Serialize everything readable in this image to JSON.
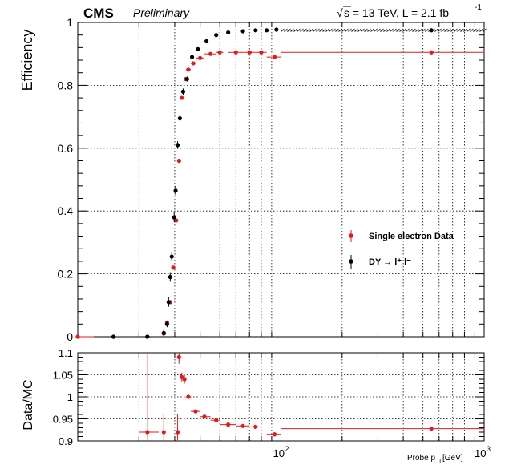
{
  "header": {
    "cms": "CMS",
    "preliminary": "Preliminary",
    "energy": "s = 13 TeV, L = 2.1 fb",
    "energy_sqrt_symbol": "√",
    "lumi_exponent": "-1"
  },
  "chart_data": [
    {
      "type": "scatter",
      "title": "",
      "xlabel": "Probe p_T [GeV]",
      "ylabel": "Efficiency",
      "xscale": "log",
      "xlim": [
        10,
        1000
      ],
      "ylim": [
        0,
        1.0
      ],
      "grid": true,
      "legend_position": "bottom-right",
      "y_ticks": [
        "0",
        "0.2",
        "0.4",
        "0.6",
        "0.8",
        "1"
      ],
      "series": [
        {
          "name": "Single electron Data",
          "color": "#e8181a",
          "points": [
            {
              "x": 10.0,
              "y": 0.0,
              "xlo": 5,
              "xhi": 12
            },
            {
              "x": 15.0,
              "y": 0.0,
              "xlo": 12.0,
              "xhi": 18.0
            },
            {
              "x": 22.0,
              "y": 0.0,
              "xlo": 18.0,
              "xhi": 25.0
            },
            {
              "x": 26.5,
              "y": 0.01,
              "xlo": 26.0,
              "xhi": 27.0
            },
            {
              "x": 27.5,
              "y": 0.045,
              "xlo": 27.0,
              "xhi": 28.0
            },
            {
              "x": 28.5,
              "y": 0.11,
              "xlo": 28.0,
              "xhi": 29.0
            },
            {
              "x": 29.5,
              "y": 0.22,
              "xlo": 29.0,
              "xhi": 30.0
            },
            {
              "x": 30.5,
              "y": 0.37,
              "xlo": 30.0,
              "xhi": 31.0
            },
            {
              "x": 31.5,
              "y": 0.56,
              "xlo": 31.0,
              "xhi": 32.0
            },
            {
              "x": 32.5,
              "y": 0.76,
              "xlo": 32.0,
              "xhi": 33.0
            },
            {
              "x": 34.0,
              "y": 0.82,
              "xlo": 33.0,
              "xhi": 35.0
            },
            {
              "x": 35.0,
              "y": 0.85,
              "xlo": 34.0,
              "xhi": 36.0
            },
            {
              "x": 37.0,
              "y": 0.87,
              "xlo": 36.0,
              "xhi": 38.0
            },
            {
              "x": 40.0,
              "y": 0.887,
              "xlo": 38.0,
              "xhi": 42.0
            },
            {
              "x": 45.0,
              "y": 0.9,
              "xlo": 42.0,
              "xhi": 48.0
            },
            {
              "x": 50.0,
              "y": 0.905,
              "xlo": 48.0,
              "xhi": 52.0
            },
            {
              "x": 60.0,
              "y": 0.905,
              "xlo": 55.0,
              "xhi": 65.0
            },
            {
              "x": 70.0,
              "y": 0.905,
              "xlo": 65.0,
              "xhi": 75.0
            },
            {
              "x": 80.0,
              "y": 0.905,
              "xlo": 75.0,
              "xhi": 85.0
            },
            {
              "x": 93.0,
              "y": 0.89,
              "xlo": 85.0,
              "xhi": 100.0
            },
            {
              "x": 550.0,
              "y": 0.905,
              "xlo": 100.0,
              "xhi": 1000.0
            }
          ]
        },
        {
          "name": "DY → l⁺ l⁻",
          "color": "#000000",
          "points": [
            {
              "x": 15.0,
              "y": 0.0,
              "xlo": 12.0,
              "xhi": 18.0
            },
            {
              "x": 22.0,
              "y": 0.0,
              "xlo": 18.0,
              "xhi": 25.0
            },
            {
              "x": 26.5,
              "y": 0.012,
              "yerr": 0.01
            },
            {
              "x": 27.5,
              "y": 0.04,
              "yerr": 0.01
            },
            {
              "x": 28.0,
              "y": 0.11,
              "yerr": 0.015
            },
            {
              "x": 28.5,
              "y": 0.19,
              "yerr": 0.015
            },
            {
              "x": 29.0,
              "y": 0.255,
              "yerr": 0.015
            },
            {
              "x": 29.8,
              "y": 0.38,
              "yerr": 0.015
            },
            {
              "x": 30.3,
              "y": 0.465,
              "yerr": 0.015
            },
            {
              "x": 31.0,
              "y": 0.61,
              "yerr": 0.012
            },
            {
              "x": 31.8,
              "y": 0.695,
              "yerr": 0.01
            },
            {
              "x": 33.0,
              "y": 0.78,
              "yerr": 0.01
            },
            {
              "x": 34.5,
              "y": 0.82,
              "yerr": 0.008
            },
            {
              "x": 36.5,
              "y": 0.89,
              "yerr": 0.006
            },
            {
              "x": 39.0,
              "y": 0.915,
              "yerr": 0.005
            },
            {
              "x": 43.0,
              "y": 0.94,
              "yerr": 0.004
            },
            {
              "x": 48.0,
              "y": 0.96,
              "yerr": 0.004
            },
            {
              "x": 55.0,
              "y": 0.968,
              "yerr": 0.003
            },
            {
              "x": 65.0,
              "y": 0.972,
              "yerr": 0.003
            },
            {
              "x": 75.0,
              "y": 0.975,
              "yerr": 0.003
            },
            {
              "x": 85.0,
              "y": 0.975,
              "yerr": 0.003
            },
            {
              "x": 95.0,
              "y": 0.977,
              "yerr": 0.003
            },
            {
              "x": 550.0,
              "y": 0.975,
              "xlo": 100.0,
              "xhi": 1000.0
            }
          ]
        }
      ]
    },
    {
      "type": "scatter",
      "title": "",
      "xlabel": "Probe p_T [GeV]",
      "ylabel": "Data/MC",
      "xscale": "log",
      "xlim": [
        10,
        1000
      ],
      "ylim": [
        0.9,
        1.1
      ],
      "grid": true,
      "y_ticks": [
        "0.9",
        "0.95",
        "1",
        "1.05",
        "1.1"
      ],
      "x_ticks": [
        "10",
        "10",
        "3"
      ],
      "series": [
        {
          "name": "",
          "color": "#e8181a",
          "points": [
            {
              "x": 22.0,
              "y": 0.92,
              "xlo": 20.0,
              "xhi": 25.0,
              "ylo": 0.9,
              "yhi": 1.1
            },
            {
              "x": 26.5,
              "y": 0.92,
              "xlo": 26.0,
              "xhi": 27.0,
              "ylo": 0.9,
              "yhi": 0.96
            },
            {
              "x": 31.0,
              "y": 0.92,
              "xlo": 30.5,
              "xhi": 31.5,
              "ylo": 0.9,
              "yhi": 0.96
            },
            {
              "x": 31.5,
              "y": 1.09,
              "xlo": 31.0,
              "xhi": 32.0,
              "ylo": 1.075,
              "yhi": 1.1
            },
            {
              "x": 32.5,
              "y": 1.045,
              "xlo": 32.0,
              "xhi": 33.0,
              "yerr": 0.01
            },
            {
              "x": 33.5,
              "y": 1.04,
              "xlo": 33.0,
              "xhi": 34.0,
              "yerr": 0.01
            },
            {
              "x": 35.0,
              "y": 1.0,
              "xlo": 34.0,
              "xhi": 36.0,
              "yerr": 0.005
            },
            {
              "x": 38.0,
              "y": 0.967,
              "xlo": 36.0,
              "xhi": 40.0,
              "yerr": 0.003
            },
            {
              "x": 42.0,
              "y": 0.955,
              "xlo": 40.0,
              "xhi": 45.0,
              "yerr": 0.003
            },
            {
              "x": 48.0,
              "y": 0.947,
              "xlo": 45.0,
              "xhi": 50.0,
              "yerr": 0.003
            },
            {
              "x": 55.0,
              "y": 0.937,
              "xlo": 50.0,
              "xhi": 60.0,
              "yerr": 0.003
            },
            {
              "x": 65.0,
              "y": 0.934,
              "xlo": 60.0,
              "xhi": 70.0,
              "yerr": 0.003
            },
            {
              "x": 75.0,
              "y": 0.932,
              "xlo": 70.0,
              "xhi": 80.0,
              "yerr": 0.003
            },
            {
              "x": 93.0,
              "y": 0.915,
              "xlo": 85.0,
              "xhi": 100.0,
              "yerr": 0.005
            },
            {
              "x": 550.0,
              "y": 0.928,
              "xlo": 100.0,
              "xhi": 1000.0,
              "yerr": 0.003
            }
          ]
        }
      ]
    }
  ]
}
